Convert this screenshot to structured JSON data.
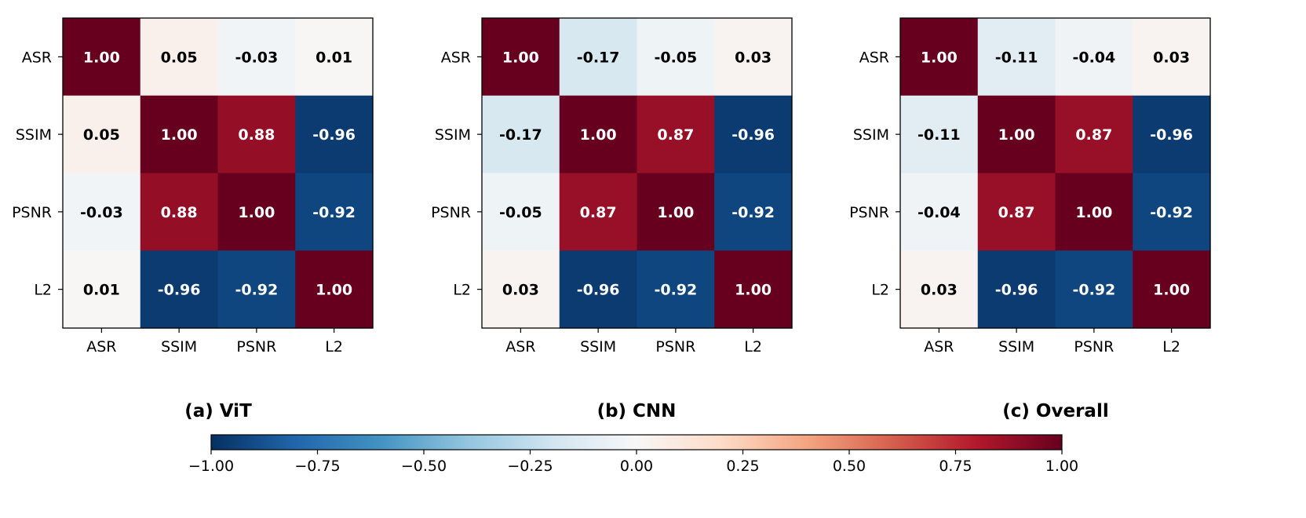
{
  "chart_data": {
    "type": "heatmap",
    "colormap": "RdBu_r",
    "vmin": -1.0,
    "vmax": 1.0,
    "panels": [
      {
        "title": "(a) ViT",
        "row_labels": [
          "ASR",
          "SSIM",
          "PSNR",
          "L2"
        ],
        "col_labels": [
          "ASR",
          "SSIM",
          "PSNR",
          "L2"
        ],
        "matrix": [
          [
            1.0,
            0.05,
            -0.03,
            0.01
          ],
          [
            0.05,
            1.0,
            0.88,
            -0.96
          ],
          [
            -0.03,
            0.88,
            1.0,
            -0.92
          ],
          [
            0.01,
            -0.96,
            -0.92,
            1.0
          ]
        ]
      },
      {
        "title": "(b) CNN",
        "row_labels": [
          "ASR",
          "SSIM",
          "PSNR",
          "L2"
        ],
        "col_labels": [
          "ASR",
          "SSIM",
          "PSNR",
          "L2"
        ],
        "matrix": [
          [
            1.0,
            -0.17,
            -0.05,
            0.03
          ],
          [
            -0.17,
            1.0,
            0.87,
            -0.96
          ],
          [
            -0.05,
            0.87,
            1.0,
            -0.92
          ],
          [
            0.03,
            -0.96,
            -0.92,
            1.0
          ]
        ]
      },
      {
        "title": "(c) Overall",
        "row_labels": [
          "ASR",
          "SSIM",
          "PSNR",
          "L2"
        ],
        "col_labels": [
          "ASR",
          "SSIM",
          "PSNR",
          "L2"
        ],
        "matrix": [
          [
            1.0,
            -0.11,
            -0.04,
            0.03
          ],
          [
            -0.11,
            1.0,
            0.87,
            -0.96
          ],
          [
            -0.04,
            0.87,
            1.0,
            -0.92
          ],
          [
            0.03,
            -0.96,
            -0.92,
            1.0
          ]
        ]
      }
    ],
    "colorbar": {
      "ticks": [
        -1.0,
        -0.75,
        -0.5,
        -0.25,
        0.0,
        0.25,
        0.5,
        0.75,
        1.0
      ],
      "tick_labels": [
        "−1.00",
        "−0.75",
        "−0.50",
        "−0.25",
        "0.00",
        "0.25",
        "0.50",
        "0.75",
        "1.00"
      ],
      "orientation": "horizontal"
    }
  }
}
